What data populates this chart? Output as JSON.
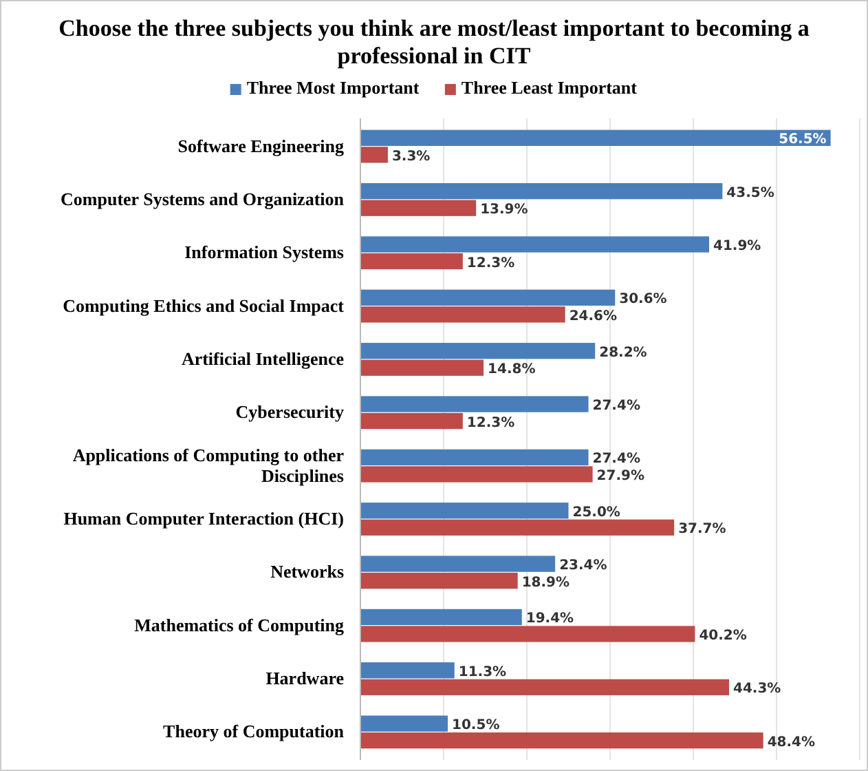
{
  "chart_data": {
    "type": "bar",
    "orientation": "horizontal",
    "title": "Choose the three subjects you think are most/least important to becoming a professional in CIT",
    "categories": [
      "Software Engineering",
      "Computer Systems and Organization",
      "Information Systems",
      "Computing Ethics and Social Impact",
      "Artificial Intelligence",
      "Cybersecurity",
      "Applications of Computing to other Disciplines",
      "Human Computer Interaction (HCI)",
      "Networks",
      "Mathematics of Computing",
      "Hardware",
      "Theory of Computation"
    ],
    "series": [
      {
        "name": "Three Most Important",
        "color": "#4a7ebb",
        "values": [
          56.5,
          43.5,
          41.9,
          30.6,
          28.2,
          27.4,
          27.4,
          25.0,
          23.4,
          19.4,
          11.3,
          10.5
        ],
        "value_labels": [
          "56.5%",
          "43.5%",
          "41.9%",
          "30.6%",
          "28.2%",
          "27.4%",
          "27.4%",
          "25.0%",
          "23.4%",
          "19.4%",
          "11.3%",
          "10.5%"
        ]
      },
      {
        "name": "Three Least Important",
        "color": "#be4b48",
        "values": [
          3.3,
          13.9,
          12.3,
          24.6,
          14.8,
          12.3,
          27.9,
          37.7,
          18.9,
          40.2,
          44.3,
          48.4
        ],
        "value_labels": [
          "3.3%",
          "13.9%",
          "12.3%",
          "24.6%",
          "14.8%",
          "12.3%",
          "27.9%",
          "37.7%",
          "18.9%",
          "40.2%",
          "44.3%",
          "48.4%"
        ]
      }
    ],
    "xlim": [
      0,
      60
    ],
    "xticks": [
      {
        "value": 0,
        "label": null
      },
      {
        "value": 10,
        "label": null
      },
      {
        "value": 20,
        "label": null
      },
      {
        "value": 30,
        "label": null
      },
      {
        "value": 40,
        "label": null
      },
      {
        "value": 50,
        "label": null
      },
      {
        "value": 60,
        "label": null
      }
    ],
    "tick_labels": "y",
    "grid": "x",
    "legend": "top"
  }
}
